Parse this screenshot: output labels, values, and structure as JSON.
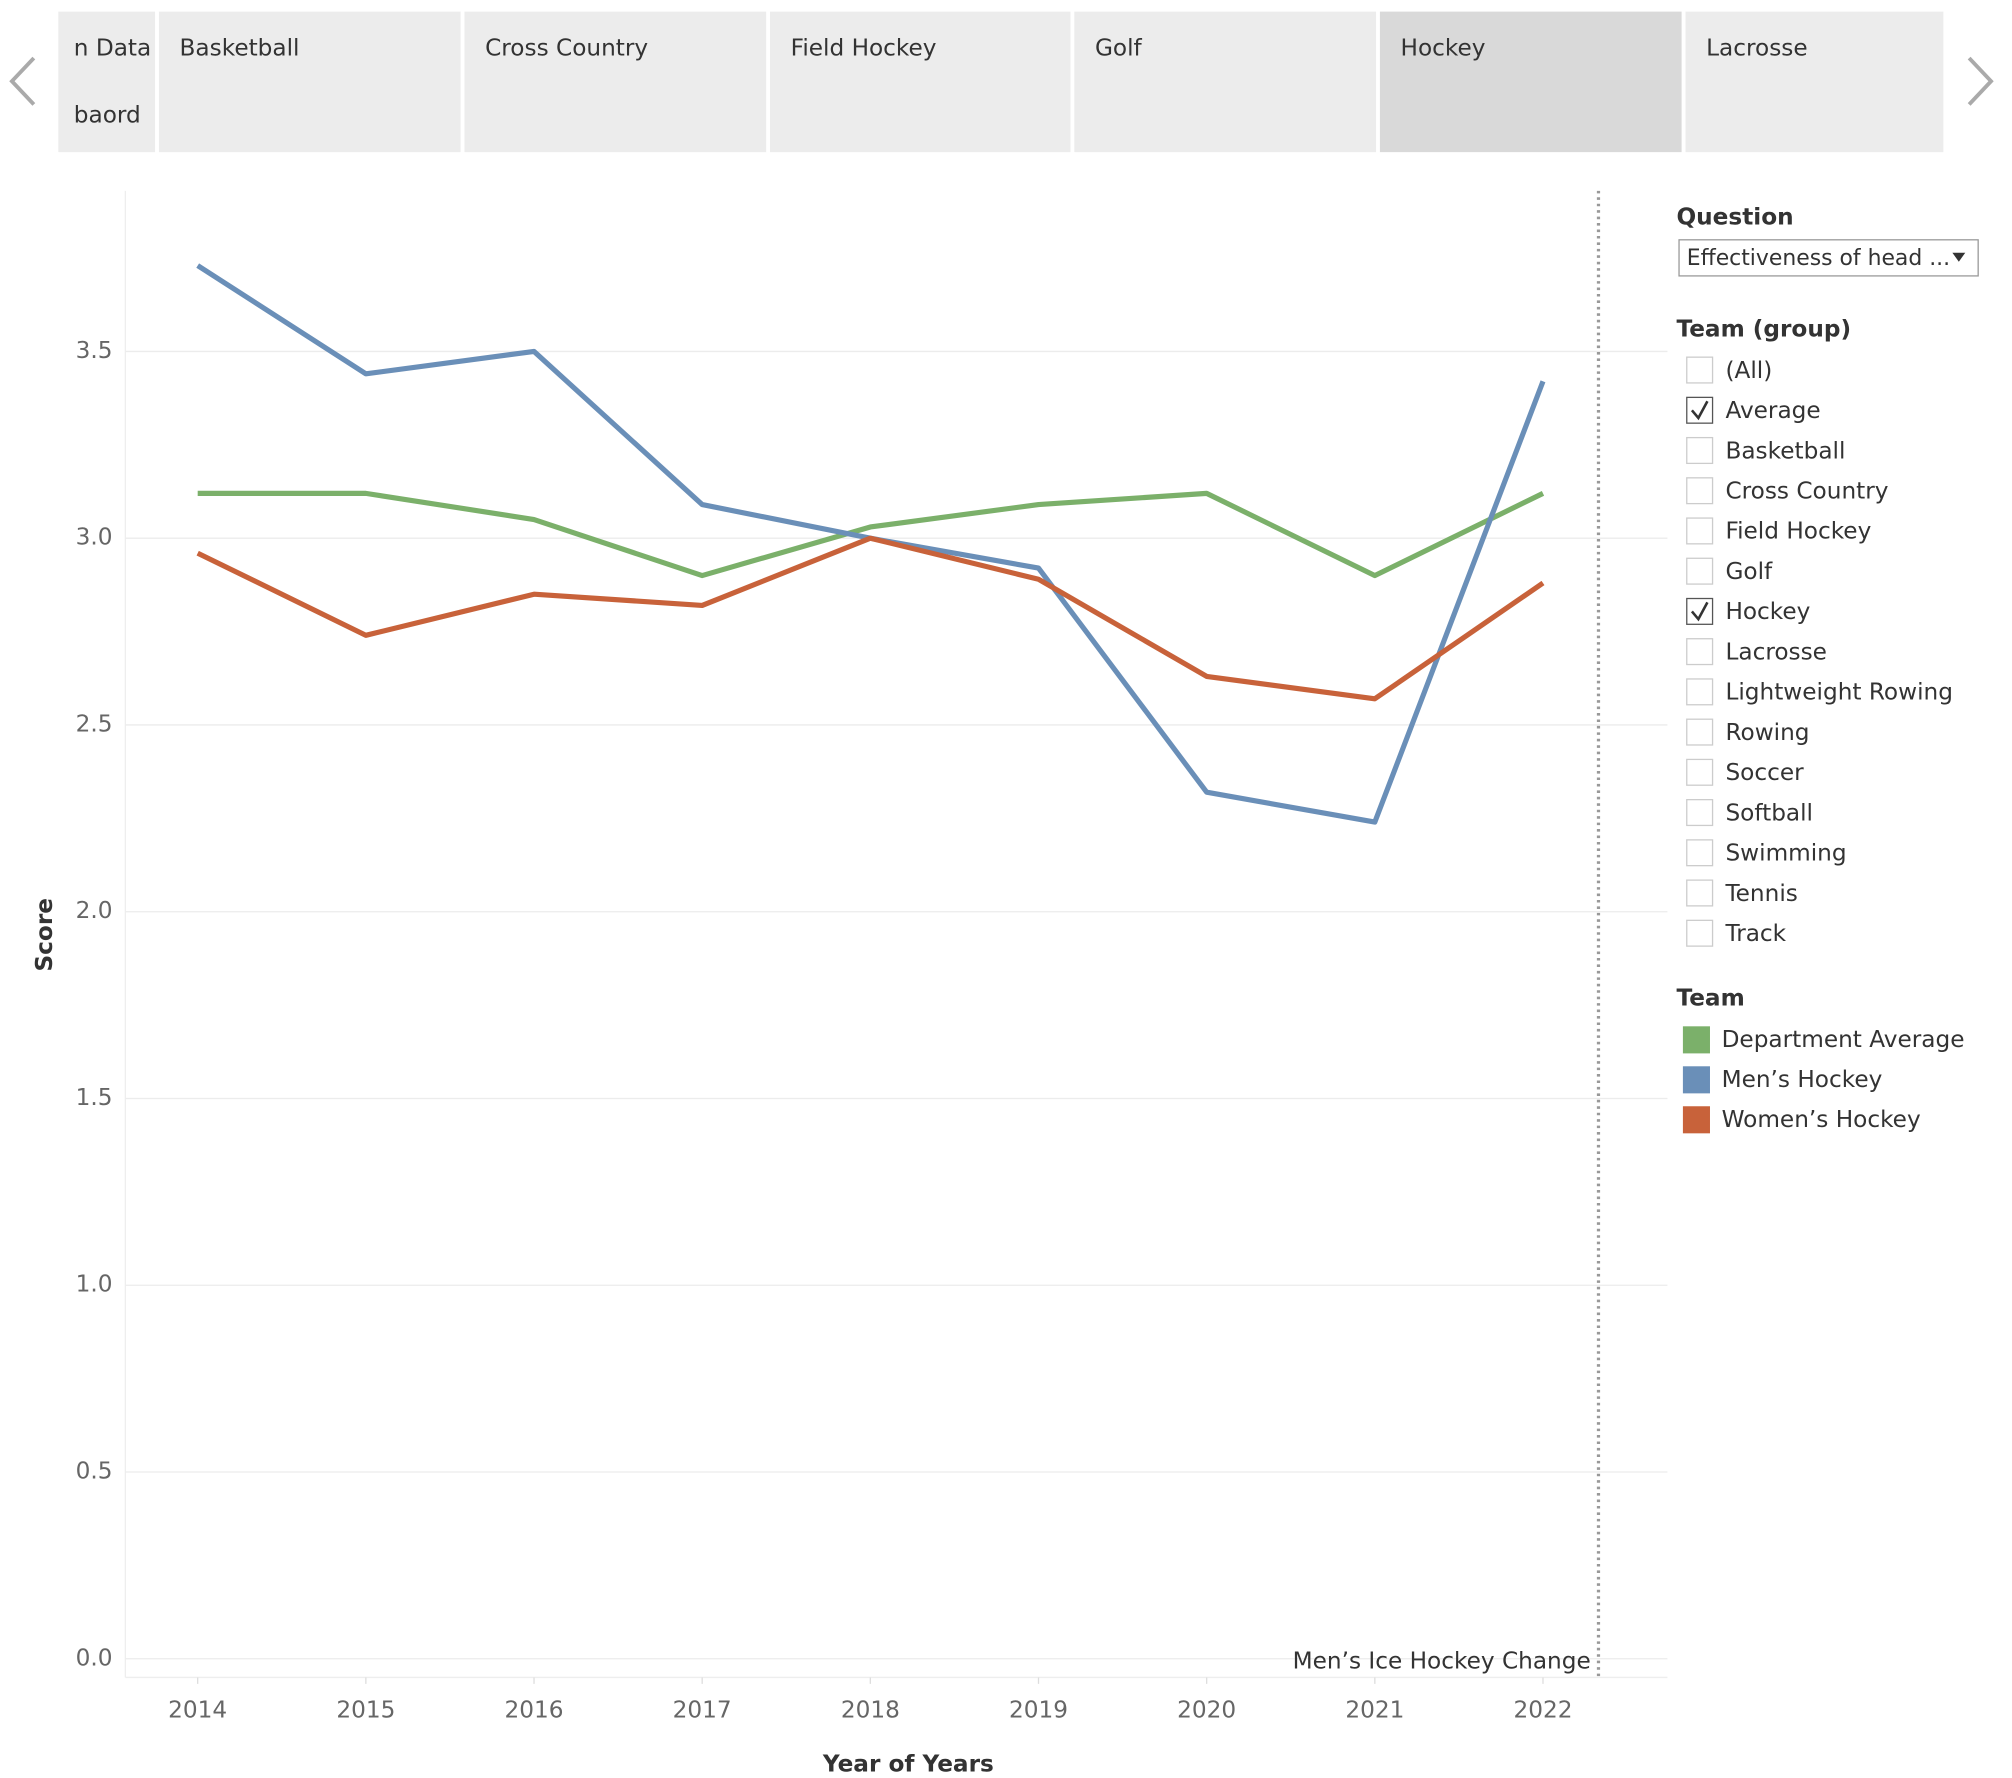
{
  "tabs": [
    {
      "lines": [
        "n Data",
        "baord"
      ]
    },
    {
      "lines": [
        "Basketball"
      ]
    },
    {
      "lines": [
        "Cross Country"
      ]
    },
    {
      "lines": [
        "Field Hockey"
      ]
    },
    {
      "lines": [
        "Golf"
      ]
    },
    {
      "lines": [
        "Hockey"
      ],
      "active": true
    },
    {
      "lines": [
        "Lacrosse"
      ]
    }
  ],
  "filters": {
    "question": {
      "title": "Question",
      "value": "Effectiveness of head ..."
    },
    "team_group": {
      "title": "Team (group)",
      "options": [
        {
          "label": "(All)",
          "checked": false
        },
        {
          "label": "Average",
          "checked": true
        },
        {
          "label": "Basketball",
          "checked": false
        },
        {
          "label": "Cross Country",
          "checked": false
        },
        {
          "label": "Field Hockey",
          "checked": false
        },
        {
          "label": "Golf",
          "checked": false
        },
        {
          "label": "Hockey",
          "checked": true
        },
        {
          "label": "Lacrosse",
          "checked": false
        },
        {
          "label": "Lightweight Rowing",
          "checked": false
        },
        {
          "label": "Rowing",
          "checked": false
        },
        {
          "label": "Soccer",
          "checked": false
        },
        {
          "label": "Softball",
          "checked": false
        },
        {
          "label": "Swimming",
          "checked": false
        },
        {
          "label": "Tennis",
          "checked": false
        },
        {
          "label": "Track",
          "checked": false
        }
      ]
    }
  },
  "chart_data": {
    "type": "line",
    "x_label": "Year of Years",
    "y_label": "Score",
    "legend_title": "Team",
    "x": [
      2014,
      2015,
      2016,
      2017,
      2018,
      2019,
      2020,
      2021,
      2022
    ],
    "xlim": [
      2013.57,
      2022.74
    ],
    "xticks": [
      2014,
      2015,
      2016,
      2017,
      2018,
      2019,
      2020,
      2021,
      2022
    ],
    "ylim": [
      -0.05,
      3.93
    ],
    "yticks": [
      {
        "value": 0,
        "label": "0.0"
      },
      0.5,
      {
        "value": 1,
        "label": "1.0"
      },
      1.5,
      {
        "value": 2,
        "label": "2.0"
      },
      2.5,
      {
        "value": 3,
        "label": "3.0"
      },
      3.5
    ],
    "grid": true,
    "reference_line": {
      "x": 2022.33,
      "label": "Men’s Ice Hockey Change"
    },
    "series": [
      {
        "name": "Department Average",
        "color": "#7bb06a",
        "values": [
          3.12,
          3.12,
          3.05,
          2.9,
          3.03,
          3.09,
          3.12,
          2.9,
          3.12
        ]
      },
      {
        "name": "Men’s Hockey",
        "color": "#6a8fb8",
        "values": [
          3.73,
          3.44,
          3.5,
          3.09,
          3.0,
          2.92,
          2.32,
          2.24,
          3.42
        ]
      },
      {
        "name": "Women’s Hockey",
        "color": "#c8623a",
        "values": [
          2.96,
          2.74,
          2.85,
          2.82,
          3.0,
          2.89,
          2.63,
          2.57,
          2.88
        ]
      }
    ]
  }
}
